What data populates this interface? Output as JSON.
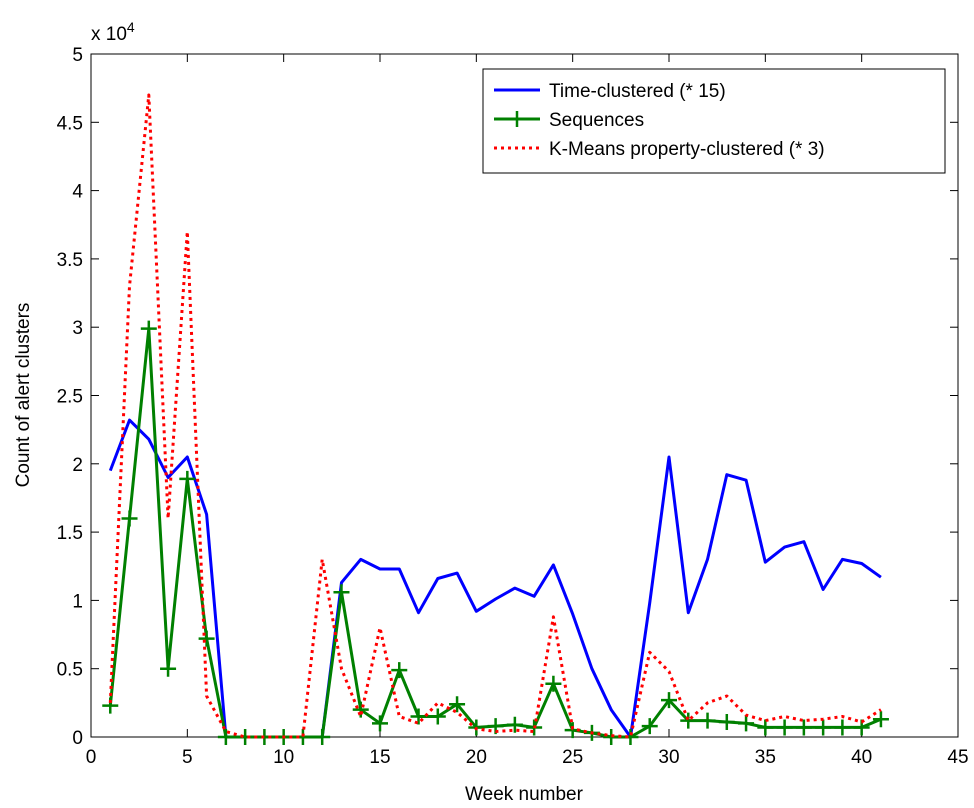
{
  "chart_data": {
    "type": "line",
    "xlabel": "Week number",
    "ylabel": "Count of alert clusters",
    "exponent_label": "x 10",
    "exponent_power": "4",
    "xlim": [
      0,
      45
    ],
    "ylim": [
      0,
      50000
    ],
    "xticks": [
      0,
      5,
      10,
      15,
      20,
      25,
      30,
      35,
      40,
      45
    ],
    "xtick_labels": [
      "0",
      "5",
      "10",
      "15",
      "20",
      "25",
      "30",
      "35",
      "40",
      "45"
    ],
    "yticks": [
      0,
      5000,
      10000,
      15000,
      20000,
      25000,
      30000,
      35000,
      40000,
      45000,
      50000
    ],
    "ytick_labels": [
      "0",
      "0.5",
      "1",
      "1.5",
      "2",
      "2.5",
      "3",
      "3.5",
      "4",
      "4.5",
      "5"
    ],
    "grid": false,
    "legend_position": "top-right",
    "x": [
      1,
      2,
      3,
      4,
      5,
      6,
      7,
      8,
      9,
      10,
      11,
      12,
      13,
      14,
      15,
      16,
      17,
      18,
      19,
      20,
      21,
      22,
      23,
      24,
      25,
      26,
      27,
      28,
      29,
      30,
      31,
      32,
      33,
      34,
      35,
      36,
      37,
      38,
      39,
      40,
      41
    ],
    "series": [
      {
        "name": "Time-clustered (* 15)",
        "color": "#0000ff",
        "style": "solid",
        "marker": "none",
        "values": [
          19500,
          23200,
          21800,
          19000,
          20500,
          16300,
          0,
          0,
          0,
          0,
          0,
          0,
          11300,
          13000,
          12300,
          12300,
          9100,
          11600,
          12000,
          9200,
          10100,
          10900,
          10300,
          12600,
          9000,
          5000,
          2000,
          0,
          9800,
          20500,
          9100,
          13000,
          19200,
          18800,
          12800,
          13900,
          14300,
          10800,
          13000,
          12700,
          11700
        ]
      },
      {
        "name": "Sequences",
        "color": "#008000",
        "style": "solid",
        "marker": "+",
        "values": [
          2300,
          16000,
          29900,
          5000,
          18900,
          7200,
          0,
          0,
          0,
          0,
          0,
          0,
          10600,
          2000,
          1000,
          4900,
          1500,
          1500,
          2400,
          700,
          800,
          900,
          700,
          3900,
          500,
          300,
          0,
          0,
          800,
          2700,
          1200,
          1200,
          1100,
          1000,
          700,
          700,
          700,
          700,
          700,
          700,
          1300
        ]
      },
      {
        "name": "K-Means property-clustered (* 3)",
        "color": "#ff0000",
        "style": "dotted",
        "marker": "none",
        "values": [
          2500,
          33000,
          47000,
          16000,
          37000,
          3000,
          400,
          0,
          0,
          0,
          0,
          13000,
          5000,
          1500,
          8000,
          1500,
          1000,
          2500,
          1800,
          600,
          400,
          500,
          400,
          8800,
          600,
          300,
          100,
          0,
          6200,
          4800,
          1200,
          2500,
          3000,
          1600,
          1200,
          1500,
          1200,
          1300,
          1500,
          1100,
          2000
        ]
      }
    ]
  }
}
